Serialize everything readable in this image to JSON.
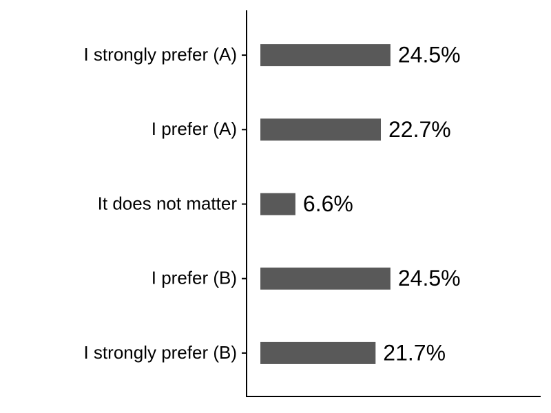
{
  "chart_data": {
    "type": "bar",
    "orientation": "horizontal",
    "categories": [
      "I strongly prefer (A)",
      "I prefer (A)",
      "It does not matter",
      "I prefer (B)",
      "I strongly prefer (B)"
    ],
    "values": [
      24.5,
      22.7,
      6.6,
      24.5,
      21.7
    ],
    "value_labels": [
      "24.5%",
      "22.7%",
      "6.6%",
      "24.5%",
      "21.7%"
    ],
    "color": "#595959",
    "xlim": [
      -2.6,
      52.8
    ]
  }
}
